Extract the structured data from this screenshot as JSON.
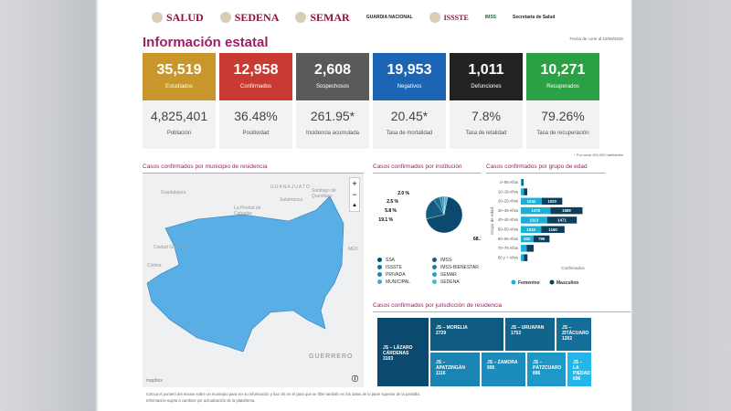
{
  "logos": [
    "SALUD",
    "SEDENA",
    "SEMAR",
    "GUARDIA NACIONAL",
    "ISSSTE",
    "IMSS",
    "Secretaría de Salud"
  ],
  "header": {
    "title": "Información estatal",
    "fecha": "Fecha de corte al 19/08/2020"
  },
  "cards": [
    {
      "value": "35,519",
      "label": "Estudiados",
      "color": "#c8962a",
      "sub_value": "4,825,401",
      "sub_label": "Población"
    },
    {
      "value": "12,958",
      "label": "Confirmados",
      "color": "#c93a32",
      "sub_value": "36.48%",
      "sub_label": "Positividad"
    },
    {
      "value": "2,608",
      "label": "Sospechosos",
      "color": "#5a5a5a",
      "sub_value": "261.95*",
      "sub_label": "Incidencia acumulada"
    },
    {
      "value": "19,953",
      "label": "Negativos",
      "color": "#1c64b4",
      "sub_value": "20.45*",
      "sub_label": "Tasa de mortalidad"
    },
    {
      "value": "1,011",
      "label": "Defunciones",
      "color": "#222222",
      "sub_value": "7.8%",
      "sub_label": "Tasa de letalidad"
    },
    {
      "value": "10,271",
      "label": "Recuperados",
      "color": "#2ca044",
      "sub_value": "79.26%",
      "sub_label": "Tasa de recuperación"
    }
  ],
  "note": "* Por cada 100,000 habitantes",
  "map": {
    "title": "Casos confirmados por municipio de residencia",
    "labels": [
      "Guadalajara",
      "GUANAJUATO",
      "Salamanca",
      "Santiago de Querétaro",
      "La Piedad de Cabadas",
      "Ciudad Guzmán",
      "Colima",
      "MÉX",
      "GUERRERO"
    ],
    "zoom_in": "+",
    "zoom_out": "−",
    "compass": "▲",
    "attribution": "mapbox",
    "fill": "#5aaee6"
  },
  "footer": [
    "Coloca el puntero del mouse sobre un municipio para ver su información y haz clic en él para que se filtre también en los datos de la parte superior de la pantalla.",
    "Información sujeta a cambios por actualización de la plataforma."
  ],
  "institucion": {
    "title": "Casos confirmados por institución",
    "slices": [
      {
        "label": "68.1 %",
        "value": 68.1,
        "color": "#0b4a6e"
      },
      {
        "label": "19.1 %",
        "value": 19.1,
        "color": "#125c82"
      },
      {
        "label": "5.8 %",
        "value": 5.8,
        "color": "#1a6e96"
      },
      {
        "label": "2.5 %",
        "value": 2.5,
        "color": "#2384aa"
      },
      {
        "label": "2.0 %",
        "value": 2.0,
        "color": "#2d9cc2"
      },
      {
        "label": "",
        "value": 2.5,
        "color": "#45b9dd"
      }
    ],
    "legend": [
      {
        "label": "SSA",
        "color": "#0b4a6e"
      },
      {
        "label": "IMSS",
        "color": "#125c82"
      },
      {
        "label": "ISSSTE",
        "color": "#1a6e96"
      },
      {
        "label": "IMSS-BIENESTAR",
        "color": "#1f7a9e"
      },
      {
        "label": "PRIVADA",
        "color": "#2384aa"
      },
      {
        "label": "SEMAR",
        "color": "#2d9cc2"
      },
      {
        "label": "MUNICIPAL",
        "color": "#38aed2"
      },
      {
        "label": "SEDENA",
        "color": "#45b9dd"
      }
    ]
  },
  "edad": {
    "title": "Casos confirmados por grupo de edad",
    "ylabel": "Grupo de edad",
    "xlabel": "Confirmados",
    "groups": [
      "0–09 Años",
      "10–19 Años",
      "20–29 Años",
      "30–39 Años",
      "40–49 Años",
      "50–59 Años",
      "60–69 Años",
      "70–79 Años",
      "80 y + Años"
    ],
    "femenino": [
      60,
      150,
      1042,
      1478,
      1313,
      1015,
      632,
      290,
      150
    ],
    "masculino": [
      70,
      170,
      1020,
      1589,
      1471,
      1160,
      795,
      350,
      180
    ],
    "legend": [
      {
        "label": "Femenino",
        "color": "#1ab0d8"
      },
      {
        "label": "Masculino",
        "color": "#0b3f5c"
      }
    ]
  },
  "jurisdiccion": {
    "title": "Casos confirmados por jurisdicción de residencia",
    "items": [
      {
        "name": "JS – LÁZARO CÁRDENAS",
        "value": "3103"
      },
      {
        "name": "JS – MORELIA",
        "value": "2729"
      },
      {
        "name": "JS – URUAPAN",
        "value": "1752"
      },
      {
        "name": "JS – ZITÁCUARO",
        "value": "1202"
      },
      {
        "name": "JS – APATZINGÁN",
        "value": "1116"
      },
      {
        "name": "JS – ZAMORA",
        "value": "995"
      },
      {
        "name": "JS – PÁTZCUARO",
        "value": "896"
      },
      {
        "name": "JS – LA PIEDAD",
        "value": "696"
      }
    ]
  }
}
